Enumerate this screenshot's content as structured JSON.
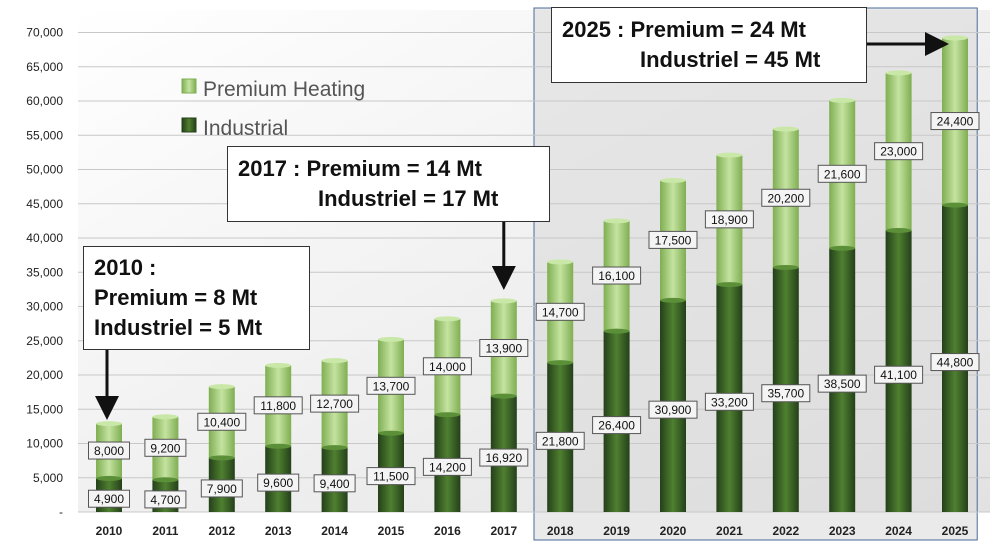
{
  "chart_data": {
    "type": "bar",
    "stacked": true,
    "categories": [
      "2010",
      "2011",
      "2012",
      "2013",
      "2014",
      "2015",
      "2016",
      "2017",
      "2018",
      "2019",
      "2020",
      "2021",
      "2022",
      "2023",
      "2024",
      "2025"
    ],
    "series": [
      {
        "name": "Industrial",
        "values": [
          4900,
          4700,
          7900,
          9600,
          9400,
          11500,
          14200,
          16920,
          21800,
          26400,
          30900,
          33200,
          35700,
          38500,
          41100,
          44800
        ],
        "labels": [
          "4,900",
          "4,700",
          "7,900",
          "9,600",
          "9,400",
          "11,500",
          "14,200",
          "16,920",
          "21,800",
          "26,400",
          "30,900",
          "33,200",
          "35,700",
          "38,500",
          "41,100",
          "44,800"
        ],
        "color": "#3f6b26"
      },
      {
        "name": "Premium Heating",
        "values": [
          8000,
          9200,
          10400,
          11800,
          12700,
          13700,
          14000,
          13900,
          14700,
          16100,
          17500,
          18900,
          20200,
          21600,
          23000,
          24400
        ],
        "labels": [
          "8,000",
          "9,200",
          "10,400",
          "11,800",
          "12,700",
          "13,700",
          "14,000",
          "13,900",
          "14,700",
          "16,100",
          "17,500",
          "18,900",
          "20,200",
          "21,600",
          "23,000",
          "24,400"
        ],
        "color": "#a6cf7c"
      }
    ],
    "ylim": [
      0,
      70000
    ],
    "yticks": [
      0,
      5000,
      10000,
      15000,
      20000,
      25000,
      30000,
      35000,
      40000,
      45000,
      50000,
      55000,
      60000,
      65000,
      70000
    ],
    "ytick_labels": [
      "-",
      "5,000",
      "10,000",
      "15,000",
      "20,000",
      "25,000",
      "30,000",
      "35,000",
      "40,000",
      "45,000",
      "50,000",
      "55,000",
      "60,000",
      "65,000",
      "70,000"
    ],
    "grid": true,
    "legend": "top-left",
    "shaded_region": {
      "from": "2018",
      "to": "2025"
    },
    "annotations": [
      {
        "lines": [
          "2010 :",
          "Premium = 8 Mt",
          "Industriel = 5 Mt"
        ],
        "target": "2010"
      },
      {
        "lines": [
          "2017 : Premium = 14 Mt",
          "Industriel = 17 Mt"
        ],
        "target": "2017"
      },
      {
        "lines": [
          "2025 : Premium = 24 Mt",
          "Industriel = 45 Mt"
        ],
        "target": "2025"
      }
    ]
  }
}
